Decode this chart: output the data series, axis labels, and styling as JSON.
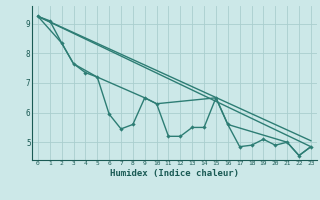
{
  "background_color": "#cce8e8",
  "grid_color": "#aacece",
  "line_color": "#2d7d74",
  "xlabel": "Humidex (Indice chaleur)",
  "xlim": [
    -0.5,
    23.5
  ],
  "ylim": [
    4.4,
    9.6
  ],
  "yticks": [
    5,
    6,
    7,
    8,
    9
  ],
  "xticks": [
    0,
    1,
    2,
    3,
    4,
    5,
    6,
    7,
    8,
    9,
    10,
    11,
    12,
    13,
    14,
    15,
    16,
    17,
    18,
    19,
    20,
    21,
    22,
    23
  ],
  "curve_main_x": [
    0,
    1,
    2,
    3,
    4,
    5,
    6,
    7,
    8,
    9,
    10,
    11,
    12,
    13,
    14,
    15,
    16,
    17,
    18,
    19,
    20,
    21,
    22,
    23
  ],
  "curve_main_y": [
    9.25,
    9.1,
    8.35,
    7.65,
    7.35,
    7.2,
    5.95,
    5.45,
    5.6,
    6.5,
    6.3,
    5.2,
    5.2,
    5.5,
    5.5,
    6.5,
    5.6,
    4.85,
    4.9,
    5.1,
    4.9,
    5.0,
    4.55,
    4.85
  ],
  "trend1_x": [
    0,
    23
  ],
  "trend1_y": [
    9.25,
    4.85
  ],
  "trend2_x": [
    0,
    23
  ],
  "trend2_y": [
    9.25,
    5.05
  ],
  "smooth_x": [
    0,
    2,
    3,
    5,
    9,
    10,
    15,
    16,
    21,
    22,
    23
  ],
  "smooth_y": [
    9.25,
    8.35,
    7.65,
    7.2,
    6.5,
    6.3,
    6.5,
    5.6,
    5.0,
    4.55,
    4.85
  ]
}
